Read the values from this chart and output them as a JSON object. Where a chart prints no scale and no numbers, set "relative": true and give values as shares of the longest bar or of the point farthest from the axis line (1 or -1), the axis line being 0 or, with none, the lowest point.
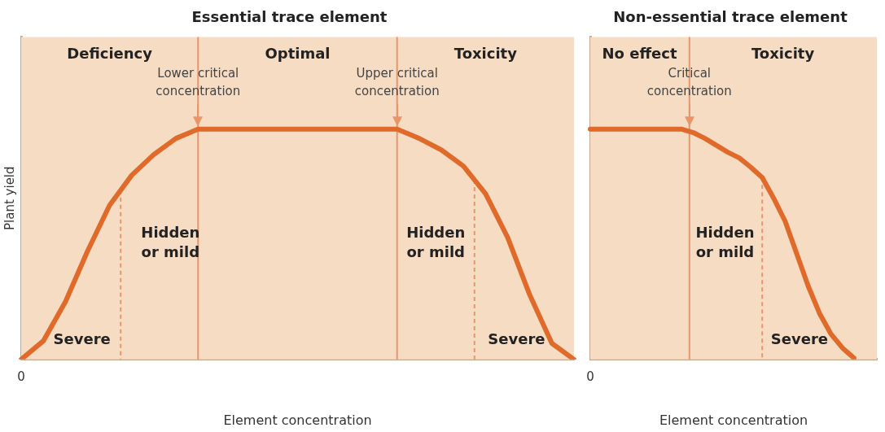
{
  "chart_data": [
    {
      "type": "line",
      "title": "Essential trace element",
      "xlabel": "Element concentration",
      "ylabel": "Plant yield",
      "relative": true,
      "categories": [
        null,
        null,
        null,
        null,
        null,
        null,
        null,
        null,
        null,
        null,
        null,
        null,
        null,
        null,
        null,
        null,
        null,
        null,
        null,
        null,
        null,
        null,
        null,
        null,
        null,
        null
      ],
      "series": [
        {
          "color": "#e06a2a",
          "values": [
            0,
            0.08,
            0.25,
            0.47,
            0.67,
            0.8,
            0.89,
            0.96,
            1,
            1,
            1,
            1,
            1,
            1,
            1,
            1,
            1,
            1,
            0.96,
            0.91,
            0.84,
            0.72,
            0.53,
            0.28,
            0.07,
            0
          ]
        }
      ],
      "annotations": [
        "0",
        "Deficiency",
        "Optimal",
        "Toxicity",
        "Lower critical concentration",
        "Upper critical concentration",
        "Hidden or mild",
        "Severe",
        "Hidden or mild",
        "Severe"
      ]
    },
    {
      "type": "line",
      "title": "Non-essential trace element",
      "xlabel": "Element concentration",
      "relative": true,
      "categories": [
        null,
        null,
        null,
        null,
        null,
        null,
        null,
        null,
        null,
        null,
        null,
        null,
        null,
        null,
        null,
        null,
        null,
        null,
        null,
        null,
        null,
        null,
        null,
        null,
        null,
        null
      ],
      "series": [
        {
          "color": "#e06a2a",
          "values": [
            1,
            1,
            1,
            1,
            1,
            1,
            1,
            1,
            1,
            0.985,
            0.96,
            0.93,
            0.9,
            0.875,
            0.835,
            0.79,
            0.7,
            0.6,
            0.46,
            0.32,
            0.2,
            0.11,
            0.05,
            0.006,
            null,
            null
          ]
        }
      ],
      "annotations": [
        "0",
        "No effect",
        "Toxicity",
        "Critical concentration",
        "Hidden or mild",
        "Severe"
      ]
    }
  ]
}
